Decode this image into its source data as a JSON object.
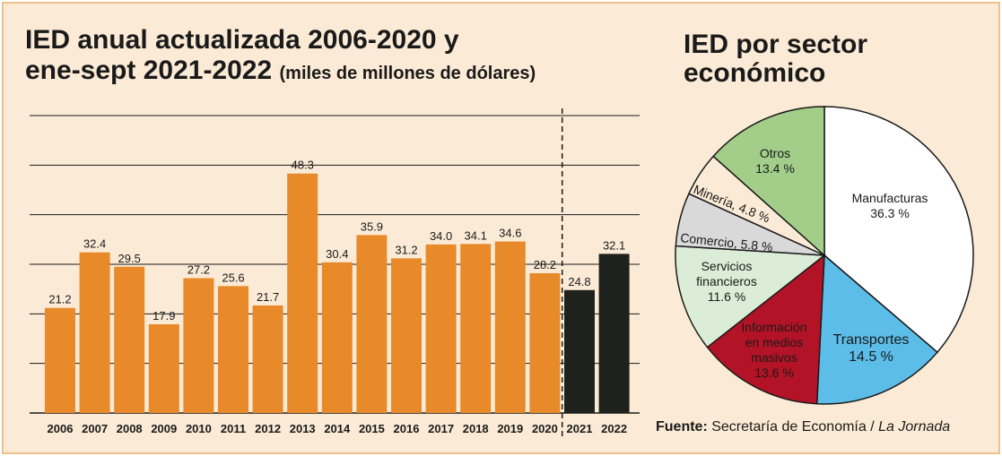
{
  "bar_chart": {
    "title_line1": "IED anual actualizada 2006-2020 y",
    "title_line2": "ene-sept 2021-2022",
    "subtitle": "(miles de millones de dólares)"
  },
  "pie_chart": {
    "title_line1": "IED por sector",
    "title_line2": "económico"
  },
  "source": {
    "label": "Fuente:",
    "text": "Secretaría de Economía / ",
    "outlet": "La Jornada"
  },
  "colors": {
    "orange": "#e8892a",
    "dark": "#1f211c",
    "manufacturas": "#ffffff",
    "transportes": "#5cbde9",
    "informacion": "#b31327",
    "servicios": "#dbedd6",
    "comercio": "#d9d9d9",
    "mineria": "#fbebd6",
    "otros": "#a2ce8a"
  },
  "chart_data": [
    {
      "type": "bar",
      "title": "IED anual actualizada 2006-2020 y ene-sept 2021-2022",
      "ylabel": "",
      "xlabel": "",
      "ylim": [
        0,
        60
      ],
      "grid": true,
      "categories": [
        "2006",
        "2007",
        "2008",
        "2009",
        "2010",
        "2011",
        "2012",
        "2013",
        "2014",
        "2015",
        "2016",
        "2017",
        "2018",
        "2019",
        "2020",
        "2021",
        "2022"
      ],
      "values": [
        21.2,
        32.4,
        29.5,
        17.9,
        27.2,
        25.6,
        21.7,
        48.3,
        30.4,
        35.9,
        31.2,
        34.0,
        34.1,
        34.6,
        28.2,
        24.8,
        32.1
      ],
      "value_labels": [
        "21.2",
        "32.4",
        "29.5",
        "17.9",
        "27.2",
        "25.6",
        "21.7",
        "48.3",
        "30.4",
        "35.9",
        "31.2",
        "34.0",
        "34.1",
        "34.6",
        "28.2",
        "24.8",
        "32.1"
      ],
      "series_split_after": "2020"
    },
    {
      "type": "pie",
      "title": "IED por sector económico",
      "slices": [
        {
          "name": "Manufacturas",
          "value": 36.3,
          "label": "36.3 %"
        },
        {
          "name": "Transportes",
          "value": 14.5,
          "label": "14.5 %"
        },
        {
          "name": "Información en medios masivos",
          "value": 13.6,
          "label": "13.6 %"
        },
        {
          "name": "Servicios financieros",
          "value": 11.6,
          "label": "11.6 %"
        },
        {
          "name": "Comercio",
          "value": 5.8,
          "label": "5.8 %"
        },
        {
          "name": "Minería",
          "value": 4.8,
          "label": "4.8 %"
        },
        {
          "name": "Otros",
          "value": 13.4,
          "label": "13.4 %"
        }
      ]
    }
  ]
}
